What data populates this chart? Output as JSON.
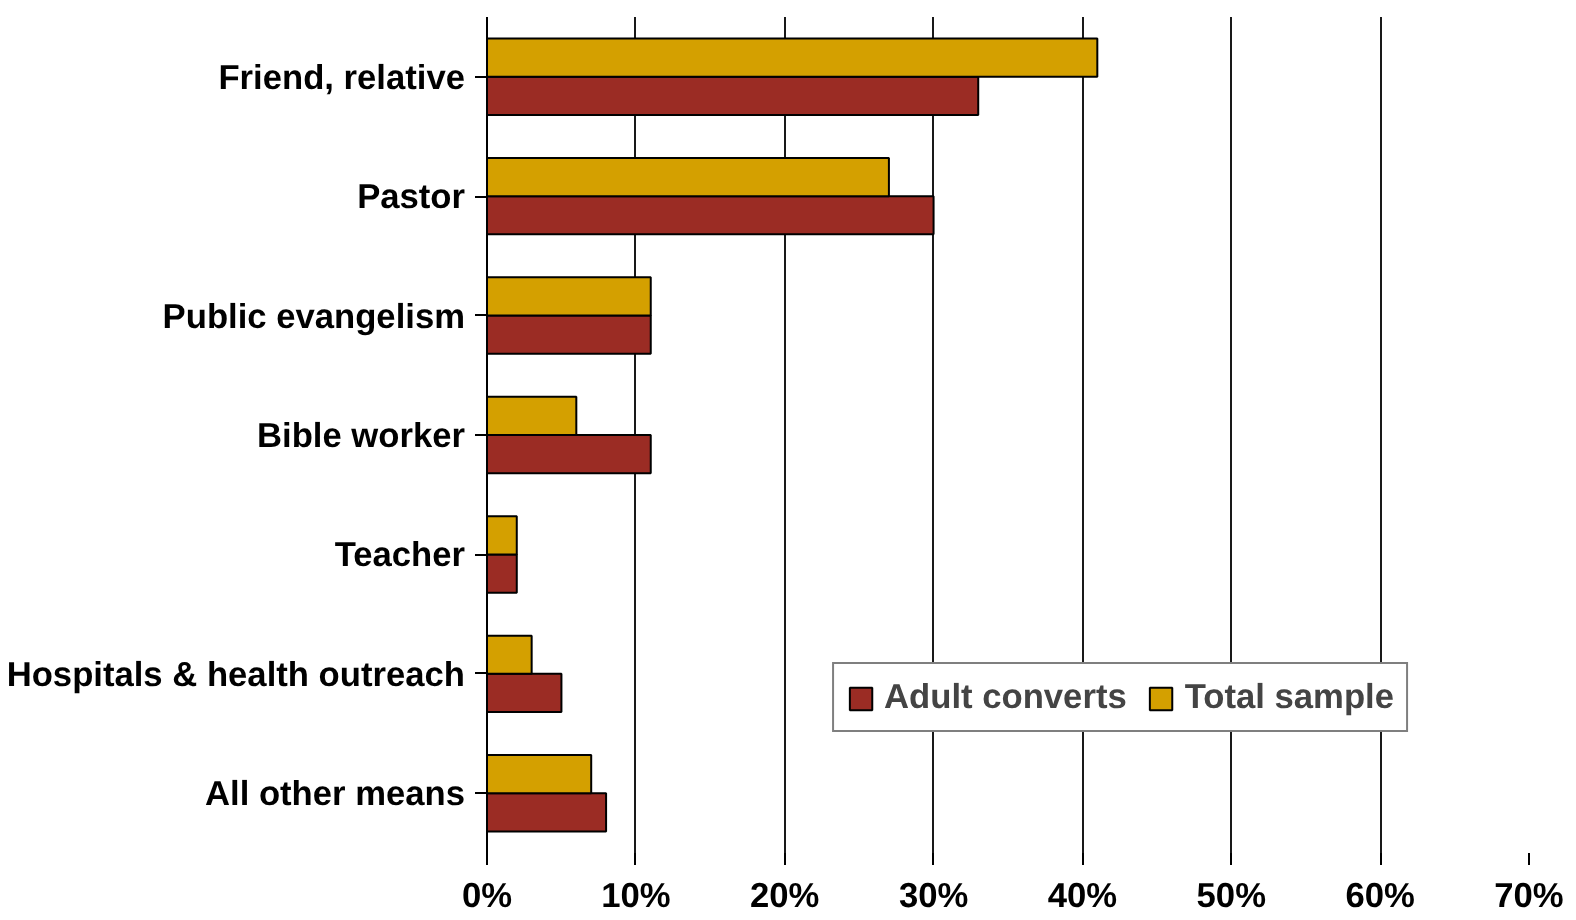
{
  "chart_data": {
    "type": "bar",
    "orientation": "horizontal",
    "categories": [
      "Friend, relative",
      "Pastor",
      "Public evangelism",
      "Bible worker",
      "Teacher",
      "Hospitals & health outreach",
      "All other means"
    ],
    "series": [
      {
        "name": "Adult converts",
        "color": "#9b2c24",
        "values": [
          33,
          30,
          11,
          11,
          2,
          5,
          8
        ]
      },
      {
        "name": "Total sample",
        "color": "#d4a000",
        "values": [
          41,
          27,
          11,
          6,
          2,
          3,
          7
        ]
      }
    ],
    "xlim": [
      0,
      70
    ],
    "xticks": [
      {
        "value": 0,
        "label": "0%"
      },
      {
        "value": 10,
        "label": "10%"
      },
      {
        "value": 20,
        "label": "20%"
      },
      {
        "value": 30,
        "label": "30%"
      },
      {
        "value": 40,
        "label": "40%"
      },
      {
        "value": 50,
        "label": "50%"
      },
      {
        "value": 60,
        "label": "60%"
      },
      {
        "value": 70,
        "label": "70%"
      }
    ],
    "grid": "x",
    "legend": "bottom right"
  }
}
